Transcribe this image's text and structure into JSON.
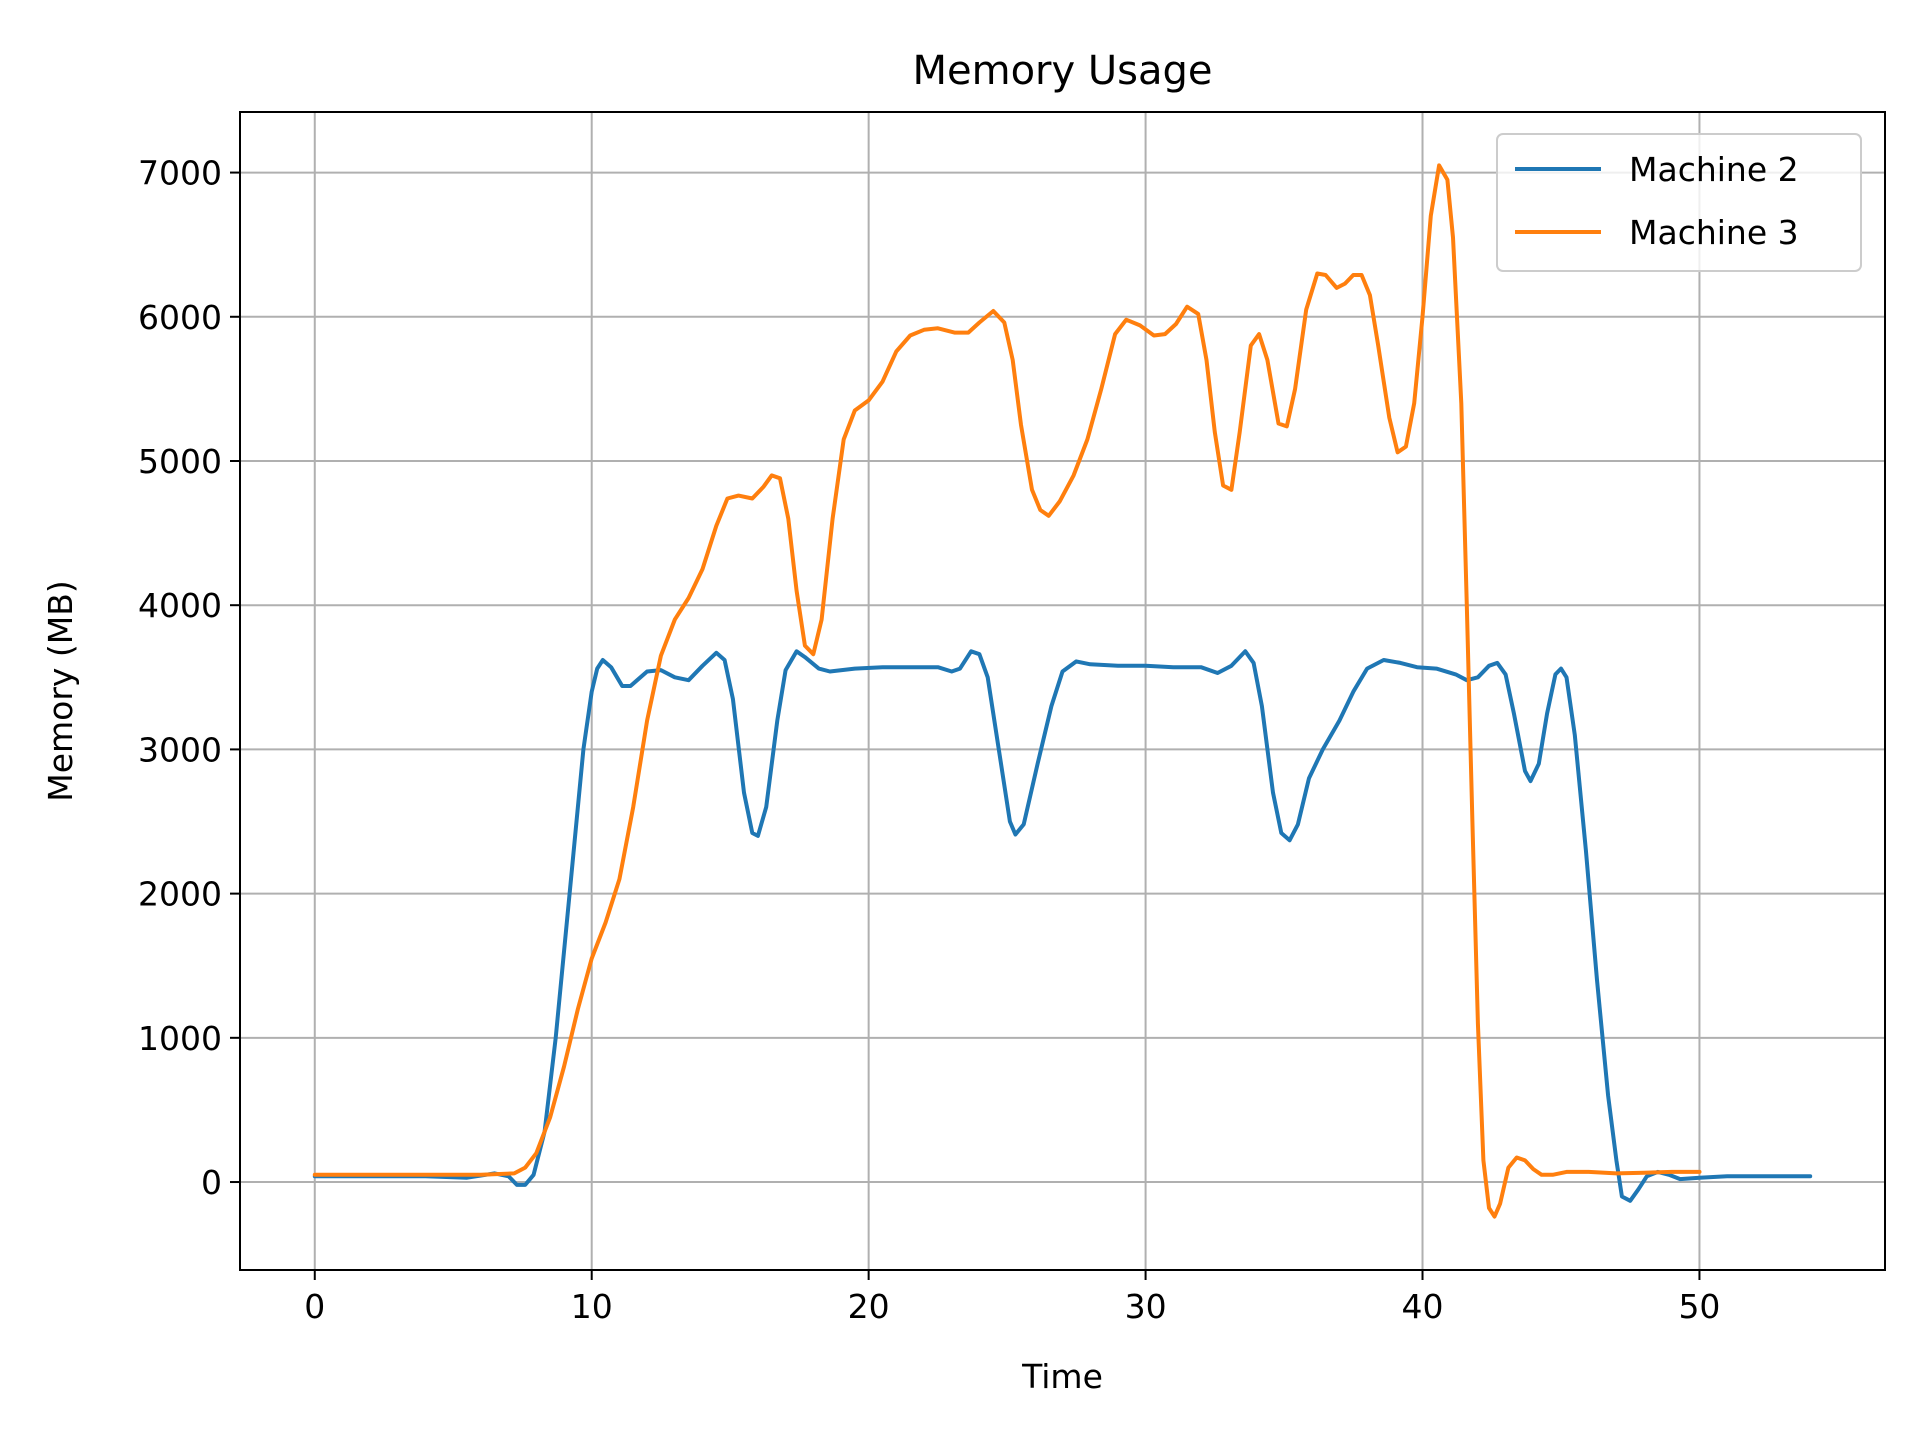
{
  "chart_data": {
    "type": "line",
    "title": "Memory Usage",
    "xlabel": "Time",
    "ylabel": "Memory (MB)",
    "xlim": [
      -2.7,
      56.7
    ],
    "ylim": [
      -610,
      7420
    ],
    "xticks": [
      0,
      10,
      20,
      30,
      40,
      50
    ],
    "yticks": [
      0,
      1000,
      2000,
      3000,
      4000,
      5000,
      6000,
      7000
    ],
    "grid": true,
    "legend_position": "top-right",
    "series": [
      {
        "name": "Machine 2",
        "color": "#1f77b4",
        "points": [
          [
            0,
            40
          ],
          [
            2,
            40
          ],
          [
            4,
            40
          ],
          [
            5.5,
            30
          ],
          [
            6.5,
            60
          ],
          [
            7,
            40
          ],
          [
            7.3,
            -20
          ],
          [
            7.6,
            -20
          ],
          [
            7.9,
            50
          ],
          [
            8.3,
            350
          ],
          [
            8.7,
            1000
          ],
          [
            9.2,
            2000
          ],
          [
            9.7,
            3000
          ],
          [
            10,
            3400
          ],
          [
            10.2,
            3560
          ],
          [
            10.4,
            3620
          ],
          [
            10.7,
            3570
          ],
          [
            11.1,
            3440
          ],
          [
            11.4,
            3440
          ],
          [
            12,
            3540
          ],
          [
            12.5,
            3550
          ],
          [
            13,
            3500
          ],
          [
            13.5,
            3480
          ],
          [
            14,
            3580
          ],
          [
            14.5,
            3670
          ],
          [
            14.8,
            3620
          ],
          [
            15.1,
            3350
          ],
          [
            15.5,
            2700
          ],
          [
            15.8,
            2420
          ],
          [
            16,
            2400
          ],
          [
            16.3,
            2600
          ],
          [
            16.7,
            3200
          ],
          [
            17,
            3550
          ],
          [
            17.4,
            3680
          ],
          [
            17.7,
            3640
          ],
          [
            18.2,
            3560
          ],
          [
            18.6,
            3540
          ],
          [
            19.5,
            3560
          ],
          [
            20.5,
            3570
          ],
          [
            21.5,
            3570
          ],
          [
            22.5,
            3570
          ],
          [
            23,
            3540
          ],
          [
            23.3,
            3560
          ],
          [
            23.7,
            3680
          ],
          [
            24,
            3660
          ],
          [
            24.3,
            3500
          ],
          [
            24.7,
            3000
          ],
          [
            25.1,
            2500
          ],
          [
            25.3,
            2410
          ],
          [
            25.6,
            2480
          ],
          [
            26.1,
            2900
          ],
          [
            26.6,
            3300
          ],
          [
            27,
            3540
          ],
          [
            27.5,
            3610
          ],
          [
            28,
            3590
          ],
          [
            29,
            3580
          ],
          [
            30,
            3580
          ],
          [
            31,
            3570
          ],
          [
            32,
            3570
          ],
          [
            32.6,
            3530
          ],
          [
            33.1,
            3580
          ],
          [
            33.6,
            3680
          ],
          [
            33.9,
            3600
          ],
          [
            34.2,
            3300
          ],
          [
            34.6,
            2700
          ],
          [
            34.9,
            2420
          ],
          [
            35.2,
            2370
          ],
          [
            35.5,
            2480
          ],
          [
            35.9,
            2800
          ],
          [
            36.4,
            3000
          ],
          [
            37,
            3200
          ],
          [
            37.5,
            3400
          ],
          [
            38,
            3560
          ],
          [
            38.6,
            3620
          ],
          [
            39.2,
            3600
          ],
          [
            39.8,
            3570
          ],
          [
            40.5,
            3560
          ],
          [
            41.2,
            3520
          ],
          [
            41.6,
            3480
          ],
          [
            42,
            3500
          ],
          [
            42.4,
            3580
          ],
          [
            42.7,
            3600
          ],
          [
            43,
            3520
          ],
          [
            43.3,
            3250
          ],
          [
            43.7,
            2850
          ],
          [
            43.9,
            2780
          ],
          [
            44.2,
            2900
          ],
          [
            44.5,
            3250
          ],
          [
            44.8,
            3520
          ],
          [
            45,
            3560
          ],
          [
            45.2,
            3500
          ],
          [
            45.5,
            3100
          ],
          [
            45.9,
            2300
          ],
          [
            46.3,
            1400
          ],
          [
            46.7,
            600
          ],
          [
            47,
            150
          ],
          [
            47.2,
            -100
          ],
          [
            47.5,
            -130
          ],
          [
            47.8,
            -50
          ],
          [
            48.1,
            40
          ],
          [
            48.5,
            70
          ],
          [
            48.9,
            50
          ],
          [
            49.3,
            20
          ],
          [
            50,
            30
          ],
          [
            51,
            40
          ],
          [
            52,
            40
          ],
          [
            54,
            40
          ]
        ]
      },
      {
        "name": "Machine 3",
        "color": "#ff7f0e",
        "points": [
          [
            0,
            50
          ],
          [
            2,
            50
          ],
          [
            4,
            50
          ],
          [
            6,
            50
          ],
          [
            7.2,
            60
          ],
          [
            7.6,
            100
          ],
          [
            8,
            200
          ],
          [
            8.5,
            450
          ],
          [
            9,
            800
          ],
          [
            9.5,
            1200
          ],
          [
            10,
            1550
          ],
          [
            10.5,
            1800
          ],
          [
            11,
            2100
          ],
          [
            11.5,
            2600
          ],
          [
            12,
            3200
          ],
          [
            12.5,
            3650
          ],
          [
            13,
            3900
          ],
          [
            13.5,
            4050
          ],
          [
            14,
            4250
          ],
          [
            14.5,
            4550
          ],
          [
            14.9,
            4740
          ],
          [
            15.3,
            4760
          ],
          [
            15.8,
            4740
          ],
          [
            16.2,
            4820
          ],
          [
            16.5,
            4900
          ],
          [
            16.8,
            4880
          ],
          [
            17.1,
            4600
          ],
          [
            17.4,
            4100
          ],
          [
            17.7,
            3720
          ],
          [
            18,
            3660
          ],
          [
            18.3,
            3900
          ],
          [
            18.7,
            4600
          ],
          [
            19.1,
            5150
          ],
          [
            19.5,
            5350
          ],
          [
            20,
            5420
          ],
          [
            20.5,
            5550
          ],
          [
            21,
            5760
          ],
          [
            21.5,
            5870
          ],
          [
            22,
            5910
          ],
          [
            22.5,
            5920
          ],
          [
            23.1,
            5890
          ],
          [
            23.6,
            5890
          ],
          [
            24,
            5960
          ],
          [
            24.5,
            6040
          ],
          [
            24.9,
            5960
          ],
          [
            25.2,
            5700
          ],
          [
            25.5,
            5250
          ],
          [
            25.9,
            4800
          ],
          [
            26.2,
            4660
          ],
          [
            26.5,
            4620
          ],
          [
            26.9,
            4720
          ],
          [
            27.4,
            4900
          ],
          [
            27.9,
            5150
          ],
          [
            28.4,
            5500
          ],
          [
            28.9,
            5880
          ],
          [
            29.3,
            5980
          ],
          [
            29.8,
            5940
          ],
          [
            30.3,
            5870
          ],
          [
            30.7,
            5880
          ],
          [
            31.1,
            5950
          ],
          [
            31.5,
            6070
          ],
          [
            31.9,
            6020
          ],
          [
            32.2,
            5700
          ],
          [
            32.5,
            5200
          ],
          [
            32.8,
            4830
          ],
          [
            33.1,
            4800
          ],
          [
            33.4,
            5200
          ],
          [
            33.8,
            5800
          ],
          [
            34.1,
            5880
          ],
          [
            34.4,
            5700
          ],
          [
            34.8,
            5260
          ],
          [
            35.1,
            5240
          ],
          [
            35.4,
            5500
          ],
          [
            35.8,
            6050
          ],
          [
            36.2,
            6300
          ],
          [
            36.5,
            6290
          ],
          [
            36.9,
            6200
          ],
          [
            37.2,
            6230
          ],
          [
            37.5,
            6290
          ],
          [
            37.8,
            6290
          ],
          [
            38.1,
            6150
          ],
          [
            38.4,
            5800
          ],
          [
            38.8,
            5300
          ],
          [
            39.1,
            5060
          ],
          [
            39.4,
            5100
          ],
          [
            39.7,
            5400
          ],
          [
            40,
            6000
          ],
          [
            40.3,
            6700
          ],
          [
            40.6,
            7050
          ],
          [
            40.9,
            6950
          ],
          [
            41.1,
            6550
          ],
          [
            41.4,
            5400
          ],
          [
            41.6,
            4000
          ],
          [
            41.8,
            2500
          ],
          [
            42,
            1100
          ],
          [
            42.2,
            150
          ],
          [
            42.4,
            -180
          ],
          [
            42.6,
            -240
          ],
          [
            42.8,
            -150
          ],
          [
            43.1,
            100
          ],
          [
            43.4,
            170
          ],
          [
            43.7,
            150
          ],
          [
            44,
            90
          ],
          [
            44.3,
            50
          ],
          [
            44.7,
            50
          ],
          [
            45.2,
            70
          ],
          [
            46,
            70
          ],
          [
            47,
            60
          ],
          [
            48,
            65
          ],
          [
            49,
            70
          ],
          [
            50,
            70
          ]
        ]
      }
    ]
  }
}
